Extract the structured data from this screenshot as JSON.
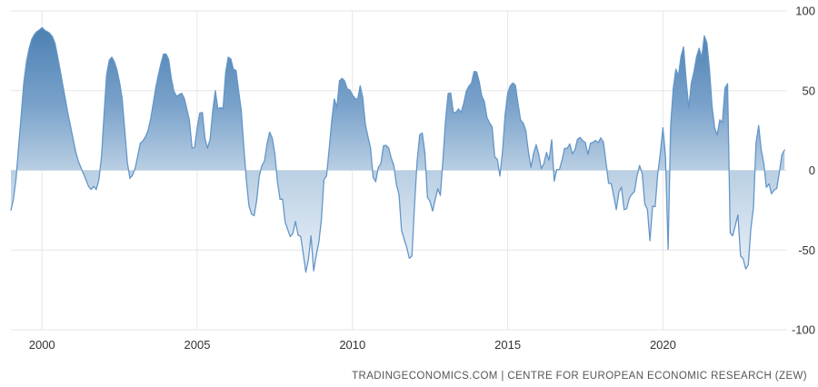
{
  "chart_data": {
    "type": "area",
    "x_start_year": 1999,
    "interval_months": 1,
    "values": [
      -25,
      -18,
      -5,
      15,
      35,
      55,
      68,
      76,
      82,
      85,
      87,
      88,
      89.6,
      88,
      87,
      86,
      84,
      80,
      72,
      63,
      54,
      45,
      36,
      28,
      20,
      12,
      6,
      2,
      -2,
      -6,
      -10,
      -12,
      -10,
      -12,
      -6,
      8,
      35,
      60,
      69,
      71,
      68,
      63,
      55,
      45,
      25,
      5,
      -5,
      -3,
      1,
      9,
      17,
      18.5,
      21,
      25,
      32,
      42,
      52,
      60,
      67,
      73,
      72.9,
      69.5,
      57.6,
      49.7,
      46.4,
      47.4,
      48.4,
      45.3,
      38.4,
      31.3,
      13.9,
      14.4,
      26.9,
      35.9,
      36.3,
      20.1,
      13.9,
      19.5,
      37,
      50,
      38.6,
      39.4,
      38.7,
      61.6,
      71,
      69.8,
      63.4,
      62.7,
      50,
      37.8,
      15.1,
      -5.6,
      -22.2,
      -27.4,
      -28.5,
      -19,
      -3.6,
      2.9,
      5.8,
      16.5,
      24,
      20.3,
      10.4,
      -6.9,
      -18.1,
      -18.1,
      -32.5,
      -37.2,
      -41.6,
      -39.5,
      -32,
      -40.7,
      -41.4,
      -52.4,
      -63.9,
      -55.5,
      -41.1,
      -63,
      -53.5,
      -45.2,
      -31,
      -5.8,
      -3.5,
      13,
      31.1,
      44.8,
      39.5,
      56.1,
      57.7,
      56,
      51.1,
      50.4,
      47.2,
      45.1,
      44.5,
      53,
      45.8,
      28.7,
      21.2,
      14,
      -4.3,
      -7.2,
      1.8,
      4.3,
      15.4,
      15.7,
      14.1,
      7.6,
      3.1,
      -9,
      -15.1,
      -37.6,
      -43.3,
      -48.3,
      -55.2,
      -53.8,
      -21.6,
      5.4,
      22.3,
      23.4,
      10.8,
      -16.9,
      -19.6,
      -25.5,
      -18.2,
      -11.5,
      -15.7,
      6.9,
      31.5,
      48.2,
      48.5,
      36.3,
      36.4,
      38.5,
      36.3,
      42,
      49.6,
      52.8,
      54.6,
      62,
      61.7,
      55.7,
      46.6,
      43.2,
      33.1,
      29.8,
      27.1,
      8.6,
      6.9,
      -3.6,
      11.5,
      34.9,
      48.4,
      53,
      54.8,
      53.3,
      41.9,
      31.5,
      29.7,
      25,
      12.1,
      1.9,
      10.4,
      16.1,
      10.2,
      1,
      4.3,
      11.2,
      6.4,
      19.2,
      -6.8,
      0.5,
      0.5,
      6.2,
      13.8,
      13.8,
      16.6,
      10.4,
      12.8,
      19.5,
      20.6,
      18.6,
      17.5,
      10,
      17,
      17.6,
      18.7,
      17.4,
      20.4,
      17.8,
      5.1,
      -8.2,
      -8.2,
      -16.1,
      -24.7,
      -13.7,
      -10.6,
      -24.7,
      -24.1,
      -17.5,
      -15,
      -13.4,
      -3.6,
      3.1,
      -2.1,
      -21.1,
      -24.5,
      -44.1,
      -22.5,
      -22.8,
      -2.1,
      10.7,
      26.7,
      8.7,
      -49.5,
      28.2,
      51,
      63.4,
      59.3,
      71.5,
      77.4,
      56.1,
      39,
      55,
      61.8,
      71.2,
      76.6,
      70.7,
      84.4,
      79.8,
      63.3,
      40.4,
      26.5,
      22.3,
      31.7,
      29.9,
      51.7,
      54.3,
      -39.3,
      -41,
      -34.3,
      -28,
      -53.8,
      -55.3,
      -61.9,
      -59.2,
      -36.7,
      -23.3,
      16.9,
      28.1,
      13,
      4.1,
      -10.7,
      -8.5,
      -14.7,
      -12.3,
      -11.4,
      -1.1,
      9.8,
      12.8
    ],
    "ylim": [
      -100,
      100
    ],
    "yticks": [
      100,
      50,
      0,
      -50,
      -100
    ],
    "xticks": [
      2000,
      2005,
      2010,
      2015,
      2020
    ],
    "grid": true,
    "legend": false,
    "colors": {
      "line": "#6496c8",
      "fill_top": "#4179ad",
      "fill_upper_mid": "#7ba3cb",
      "fill_mid": "#b9cfe3",
      "fill_lower_mid": "#dfe9f3",
      "fill_bottom": "#eef3f9",
      "grid": "#e6e6e6",
      "tick_text": "#333333"
    }
  },
  "footer": {
    "attribution": "TRADINGECONOMICS.COM | CENTRE FOR EUROPEAN ECONOMIC RESEARCH (ZEW)"
  }
}
